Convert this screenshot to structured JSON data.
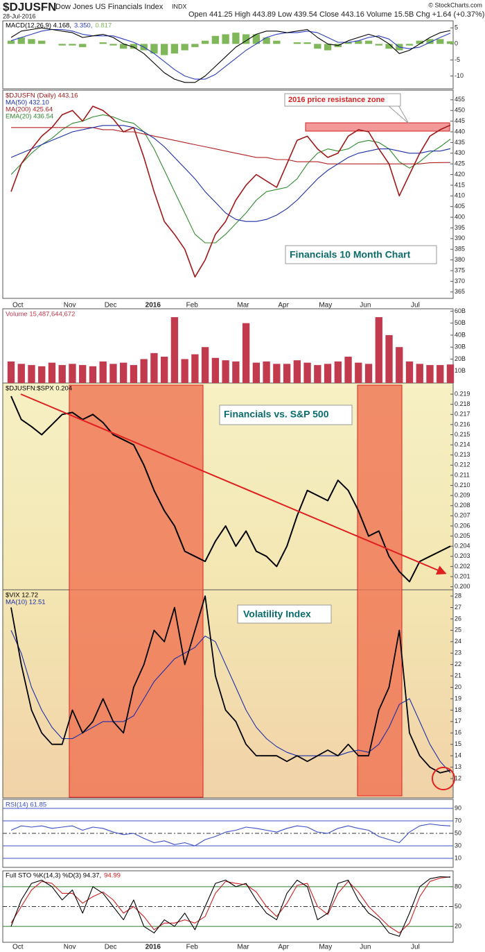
{
  "header": {
    "symbol": "$DJUSFN",
    "name": "Dow Jones US Financials Index",
    "exchange": "INDX",
    "date": "28-Jul-2016",
    "stats": "Open 441.25  High 443.89  Low 439.54  Close 443.16  Volume 15.5B  Chg +1.64 (+0.37%)",
    "credit": "© StockCharts.com"
  },
  "chart_data": [
    {
      "type": "line",
      "categories": [
        "Oct",
        null,
        null,
        null,
        null,
        "Nov",
        null,
        null,
        null,
        "Dec",
        null,
        null,
        null,
        "2016",
        null,
        null,
        null,
        "Feb",
        null,
        null,
        null,
        null,
        "Mar",
        null,
        null,
        null,
        "Apr",
        null,
        null,
        null,
        "May",
        null,
        null,
        null,
        "Jun",
        null,
        null,
        null,
        null,
        "Jul",
        null,
        null,
        null,
        null
      ],
      "ylim": [
        -14,
        7.2
      ],
      "yticks": [
        5,
        0,
        -5,
        -10
      ],
      "grid": false,
      "series": [
        {
          "name": "MACD(12,26,9) 4.168,",
          "color": "#000000",
          "values": [
            2,
            4,
            4.5,
            5,
            4.5,
            4,
            3.5,
            2,
            2.5,
            3,
            2,
            0,
            -1,
            -3,
            -6,
            -9,
            -11,
            -12,
            -12,
            -10,
            -7,
            -4,
            -1,
            1,
            3,
            4,
            4,
            3.5,
            4,
            4.5,
            2,
            0,
            -0.5,
            1,
            2,
            3,
            2,
            0,
            -3,
            -2,
            0,
            2,
            3.5,
            4.168
          ]
        },
        {
          "name": "3.350,",
          "color": "#2b3fbf",
          "values": [
            1,
            2,
            3,
            4,
            4.5,
            4.5,
            4,
            3,
            2.5,
            2.5,
            2.5,
            1.5,
            0.5,
            -1,
            -3,
            -5.5,
            -8,
            -10,
            -11,
            -11,
            -9.5,
            -7,
            -4.5,
            -2,
            0,
            2,
            3,
            3.5,
            3.5,
            4,
            3.5,
            2,
            0.5,
            0.5,
            1,
            2,
            2.5,
            1.5,
            -1,
            -1.5,
            -1,
            0.5,
            2,
            3.35
          ]
        },
        {
          "name": "0.817",
          "type": "bar",
          "color": "#7fb75a",
          "values": [
            1,
            2,
            1.5,
            1,
            0,
            -0.5,
            -0.5,
            -1,
            0,
            0.5,
            -0.5,
            -1.5,
            -1.5,
            -2,
            -3,
            -3.5,
            -3,
            -2,
            -1,
            1,
            2.5,
            3,
            3.5,
            3,
            3,
            2,
            1,
            0,
            0.5,
            0.5,
            -1.5,
            -2,
            -1,
            0.5,
            1,
            1,
            -0.5,
            -1.5,
            -2,
            -0.5,
            1,
            1.5,
            1.5,
            0.817
          ]
        }
      ]
    },
    {
      "type": "line",
      "ylim": [
        362,
        459.5
      ],
      "yticks": [
        365,
        370,
        375,
        380,
        385,
        390,
        395,
        400,
        405,
        410,
        415,
        420,
        425,
        430,
        435,
        440,
        445,
        450,
        455
      ],
      "grid": false,
      "annotations": [
        "2016 price resistance zone",
        "Financials 10 Month Chart"
      ],
      "series": [
        {
          "name": "$DJUSFN (Daily) 443.16",
          "color": "#a01818",
          "width": 1.6,
          "values": [
            412,
            425,
            432,
            438,
            442,
            448,
            450,
            445,
            452,
            450,
            446,
            440,
            442,
            428,
            412,
            398,
            392,
            385,
            372,
            380,
            392,
            398,
            408,
            415,
            420,
            417,
            414,
            425,
            436,
            438,
            432,
            428,
            430,
            438,
            441,
            440,
            432,
            425,
            410,
            420,
            430,
            438,
            441,
            443.16
          ]
        },
        {
          "name": "MA(50) 432.10",
          "color": "#1a2fa8",
          "values": [
            428,
            430,
            432,
            434,
            436,
            438,
            440,
            441,
            442,
            443,
            443,
            443,
            442,
            440,
            437,
            433,
            428,
            423,
            418,
            412,
            407,
            402,
            399,
            398,
            398,
            399,
            401,
            404,
            408,
            413,
            418,
            422,
            425,
            428,
            430,
            431,
            432,
            432,
            431,
            430,
            430,
            431,
            431,
            432.1
          ]
        },
        {
          "name": "MA(200) 425.64",
          "color": "#b02020",
          "values": [
            442,
            442,
            442,
            442,
            442,
            442,
            442,
            442,
            442,
            441,
            441,
            440,
            440,
            439,
            438,
            437,
            436,
            435,
            434,
            433,
            432,
            431,
            430,
            429,
            428,
            428,
            427,
            427,
            426,
            426,
            426,
            425,
            425,
            425,
            425,
            425,
            425,
            425,
            425,
            425,
            425,
            425.5,
            425.6,
            425.64
          ]
        },
        {
          "name": "EMA(20) 436.54",
          "color": "#2e8b2e",
          "values": [
            420,
            425,
            430,
            434,
            437,
            441,
            444,
            445,
            447,
            448,
            447,
            445,
            444,
            440,
            432,
            422,
            412,
            402,
            392,
            388,
            388,
            392,
            397,
            402,
            408,
            412,
            413,
            414,
            418,
            425,
            430,
            432,
            431,
            432,
            435,
            436,
            435,
            432,
            426,
            423,
            426,
            430,
            433,
            436.54
          ]
        }
      ]
    },
    {
      "type": "bar",
      "ylim": [
        0,
        62
      ],
      "yticks": [
        {
          "value": 10,
          "label": "10B"
        },
        {
          "value": 20,
          "label": "20B"
        },
        {
          "value": 30,
          "label": "30B"
        },
        {
          "value": 40,
          "label": "40B"
        },
        {
          "value": 50,
          "label": "50B"
        },
        {
          "value": 60,
          "label": "60B"
        }
      ],
      "grid": false,
      "series": [
        {
          "name": "Volume 15,487,644,672",
          "color": "#c23a4e",
          "values": [
            18,
            16,
            15,
            14,
            17,
            15,
            16,
            15,
            14,
            18,
            16,
            17,
            15,
            20,
            25,
            22,
            55,
            20,
            24,
            30,
            21,
            19,
            18,
            50,
            17,
            18,
            16,
            16,
            19,
            17,
            15,
            16,
            18,
            22,
            17,
            16,
            55,
            40,
            30,
            18,
            16,
            15,
            15,
            15.49
          ]
        }
      ]
    },
    {
      "type": "line",
      "ylim": [
        0.1997,
        0.2201
      ],
      "yticks": [
        {
          "value": 0.2,
          "label": "0.200"
        },
        0.201,
        0.202,
        0.203,
        0.204,
        0.205,
        0.206,
        0.207,
        0.208,
        0.209,
        {
          "value": 0.21,
          "label": "0.210"
        },
        0.211,
        0.212,
        0.213,
        0.214,
        0.215,
        0.216,
        0.217,
        0.218,
        0.219
      ],
      "grid": false,
      "annotations": [
        "Financials vs. S&P 500"
      ],
      "series": [
        {
          "name": "$DJUSFN:$SPX 0.204",
          "color": "#000000",
          "width": 2,
          "values": [
            0.2188,
            0.2165,
            0.2158,
            0.215,
            0.216,
            0.217,
            0.2172,
            0.2165,
            0.217,
            0.2162,
            0.215,
            0.2145,
            0.214,
            0.212,
            0.2095,
            0.2075,
            0.206,
            0.2035,
            0.203,
            0.2025,
            0.2045,
            0.206,
            0.204,
            0.2055,
            0.2035,
            0.203,
            0.202,
            0.204,
            0.207,
            0.2095,
            0.209,
            0.2085,
            0.2105,
            0.2095,
            0.2075,
            0.205,
            0.2055,
            0.203,
            0.2015,
            0.2005,
            0.2025,
            0.203,
            0.2035,
            0.204
          ]
        }
      ]
    },
    {
      "type": "line",
      "ylim": [
        10.3,
        28.55
      ],
      "yticks": [
        12,
        13,
        14,
        15,
        16,
        17,
        18,
        19,
        20,
        21,
        22,
        23,
        24,
        25,
        26,
        27,
        28
      ],
      "grid": false,
      "annotations": [
        "Volatility Index"
      ],
      "series": [
        {
          "name": "$VIX 12.72",
          "color": "#000000",
          "width": 1.8,
          "values": [
            27,
            22,
            18,
            16,
            15,
            15,
            18,
            16,
            17,
            19,
            17,
            16,
            20,
            22,
            25,
            24,
            27,
            22,
            25,
            28,
            21,
            18,
            17,
            15,
            14,
            14,
            14,
            13.5,
            14,
            13.5,
            14,
            14.5,
            14,
            15,
            14,
            14,
            18,
            20,
            25,
            16,
            14,
            13,
            12.5,
            12.72
          ]
        },
        {
          "name": "MA(10) 12.51",
          "color": "#1a2fa8",
          "values": [
            25,
            23,
            20,
            18,
            16.5,
            15.5,
            15.5,
            16,
            16.5,
            17,
            17,
            17,
            17.5,
            19,
            20.5,
            21.5,
            22.5,
            23,
            23.5,
            24.5,
            24,
            22,
            20,
            18,
            16.5,
            15.5,
            14.8,
            14.3,
            14,
            14,
            14,
            14,
            14,
            14.3,
            14.5,
            14.3,
            15,
            16.5,
            18.5,
            19,
            17,
            15,
            13.5,
            12.51
          ]
        }
      ]
    },
    {
      "type": "line",
      "ylim": [
        -4.4,
        104.4
      ],
      "yticks": [
        10,
        30,
        50,
        70,
        90
      ],
      "grid": true,
      "series": [
        {
          "name": "RSI(14) 61.85",
          "color": "#3a4fc8",
          "values": [
            55,
            62,
            60,
            62,
            58,
            60,
            62,
            55,
            60,
            58,
            52,
            48,
            50,
            42,
            35,
            38,
            32,
            35,
            30,
            40,
            45,
            52,
            55,
            60,
            58,
            55,
            52,
            58,
            62,
            60,
            52,
            50,
            58,
            62,
            58,
            55,
            45,
            40,
            35,
            52,
            62,
            65,
            63,
            61.85
          ]
        }
      ]
    },
    {
      "type": "line",
      "ylim": [
        -4,
        104
      ],
      "yticks": [
        20,
        50,
        80
      ],
      "grid": true,
      "series": [
        {
          "name": "Full STO %K(14,3) %D(3) 94.37,",
          "color": "#000000",
          "values": [
            20,
            60,
            85,
            90,
            80,
            60,
            75,
            40,
            80,
            70,
            50,
            30,
            60,
            20,
            10,
            30,
            20,
            40,
            15,
            50,
            85,
            90,
            80,
            85,
            60,
            40,
            30,
            70,
            90,
            80,
            30,
            40,
            85,
            90,
            60,
            40,
            30,
            10,
            5,
            40,
            80,
            92,
            95,
            94.37
          ]
        },
        {
          "name": "94.99",
          "color": "#d02020",
          "values": [
            25,
            50,
            75,
            88,
            85,
            70,
            70,
            55,
            65,
            72,
            60,
            40,
            50,
            35,
            15,
            25,
            25,
            30,
            25,
            35,
            70,
            88,
            85,
            83,
            72,
            50,
            35,
            55,
            82,
            85,
            50,
            38,
            70,
            88,
            72,
            50,
            35,
            20,
            10,
            25,
            65,
            88,
            93,
            94.99
          ]
        }
      ]
    }
  ]
}
